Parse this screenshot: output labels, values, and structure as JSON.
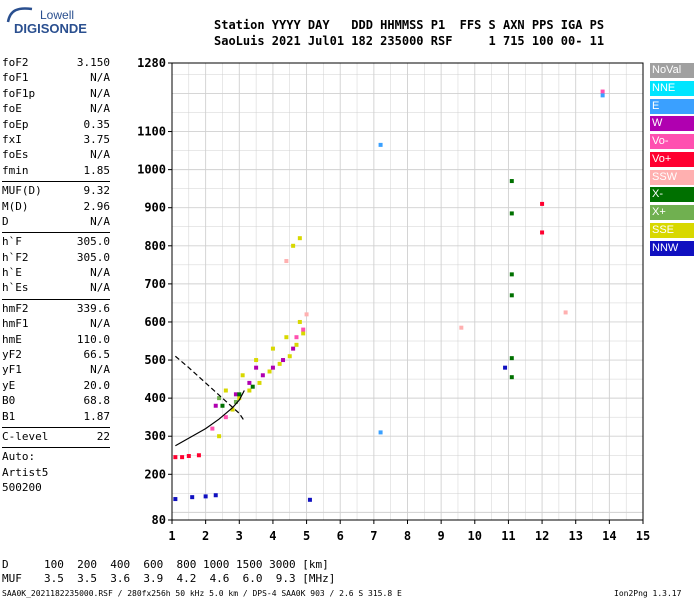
{
  "logo": {
    "line1": "Lowell",
    "line2": "DIGISONDE"
  },
  "header": {
    "line1": "Station YYYY DAY   DDD HHMMSS P1  FFS S AXN PPS IGA PS",
    "line2": "SaoLuis 2021 Jul01 182 235000 RSF     1 715 100 00- 11"
  },
  "params": {
    "group1": [
      {
        "name": "foF2",
        "value": "3.150"
      },
      {
        "name": "foF1",
        "value": "N/A"
      },
      {
        "name": "foF1p",
        "value": "N/A"
      },
      {
        "name": "foE",
        "value": "N/A"
      },
      {
        "name": "foEp",
        "value": "0.35"
      },
      {
        "name": "fxI",
        "value": "3.75"
      },
      {
        "name": "foEs",
        "value": "N/A"
      },
      {
        "name": "fmin",
        "value": "1.85"
      }
    ],
    "group2": [
      {
        "name": "MUF(D)",
        "value": "9.32"
      },
      {
        "name": "M(D)",
        "value": "2.96"
      },
      {
        "name": "D",
        "value": "N/A"
      }
    ],
    "group3": [
      {
        "name": "h`F",
        "value": "305.0"
      },
      {
        "name": "h`F2",
        "value": "305.0"
      },
      {
        "name": "h`E",
        "value": "N/A"
      },
      {
        "name": "h`Es",
        "value": "N/A"
      }
    ],
    "group4": [
      {
        "name": "hmF2",
        "value": "339.6"
      },
      {
        "name": "hmF1",
        "value": "N/A"
      },
      {
        "name": "hmE",
        "value": "110.0"
      },
      {
        "name": "yF2",
        "value": "66.5"
      },
      {
        "name": "yF1",
        "value": "N/A"
      },
      {
        "name": "yE",
        "value": "20.0"
      },
      {
        "name": "B0",
        "value": "68.8"
      },
      {
        "name": "B1",
        "value": "1.87"
      }
    ],
    "clevel": {
      "name": "C-level",
      "value": "22"
    }
  },
  "autoscale": {
    "line1": "Auto:",
    "line2": "Artist5",
    "line3": "500200"
  },
  "legend": [
    {
      "label": "NoVal",
      "color": "#a0a0a0"
    },
    {
      "label": "NNE",
      "color": "#00e5ff"
    },
    {
      "label": "E",
      "color": "#3aa0ff"
    },
    {
      "label": "W",
      "color": "#b000b0"
    },
    {
      "label": "Vo-",
      "color": "#ff50b0"
    },
    {
      "label": "Vo+",
      "color": "#ff0030"
    },
    {
      "label": "SSW",
      "color": "#ffb0b0"
    },
    {
      "label": "X-",
      "color": "#007000"
    },
    {
      "label": "X+",
      "color": "#70b050"
    },
    {
      "label": "SSE",
      "color": "#d8d800"
    },
    {
      "label": "NNW",
      "color": "#1010c0"
    }
  ],
  "footer": {
    "d_label": "D",
    "d_values": "100  200  400  600  800 1000 1500 3000 [km]",
    "muf_label": "MUF",
    "muf_values": "3.5  3.5  3.6  3.9  4.2  4.6  6.0  9.3 [MHz]",
    "file_info": "SAA0K_2021182235000.RSF / 280fx256h 50 kHz 5.0 km / DPS-4 SAA0K 903 / 2.6 S 315.8 E",
    "version": "Ion2Png 1.3.17"
  },
  "chart_data": {
    "type": "scatter",
    "xlabel": "",
    "ylabel": "",
    "xlim": [
      1,
      15
    ],
    "ylim": [
      80,
      1280
    ],
    "x_ticks": [
      1,
      2,
      3,
      4,
      5,
      6,
      7,
      8,
      9,
      10,
      11,
      12,
      13,
      14,
      15
    ],
    "y_ticks": [
      80,
      200,
      300,
      400,
      500,
      600,
      700,
      800,
      900,
      1000,
      1100,
      1280
    ],
    "grid": true,
    "series": [
      {
        "name": "SSE",
        "color": "#d8d800",
        "points": [
          [
            2.4,
            300
          ],
          [
            2.8,
            370
          ],
          [
            3.0,
            400
          ],
          [
            3.3,
            420
          ],
          [
            3.6,
            440
          ],
          [
            3.9,
            470
          ],
          [
            4.2,
            490
          ],
          [
            4.5,
            510
          ],
          [
            4.7,
            540
          ],
          [
            4.9,
            570
          ],
          [
            2.6,
            420
          ],
          [
            3.1,
            460
          ],
          [
            3.5,
            500
          ],
          [
            4.0,
            530
          ],
          [
            4.4,
            560
          ],
          [
            4.8,
            600
          ],
          [
            4.6,
            800
          ],
          [
            4.8,
            820
          ]
        ]
      },
      {
        "name": "W",
        "color": "#b000b0",
        "points": [
          [
            2.9,
            410
          ],
          [
            3.3,
            440
          ],
          [
            3.7,
            460
          ],
          [
            4.0,
            480
          ],
          [
            4.3,
            500
          ],
          [
            4.6,
            530
          ],
          [
            3.5,
            480
          ],
          [
            2.3,
            380
          ]
        ]
      },
      {
        "name": "Vo-",
        "color": "#ff50b0",
        "points": [
          [
            2.2,
            320
          ],
          [
            2.6,
            350
          ],
          [
            4.7,
            560
          ],
          [
            4.9,
            580
          ],
          [
            13.8,
            1205
          ]
        ]
      },
      {
        "name": "Vo+",
        "color": "#ff0030",
        "points": [
          [
            1.1,
            245
          ],
          [
            1.3,
            245
          ],
          [
            1.5,
            248
          ],
          [
            1.8,
            250
          ],
          [
            12.0,
            910
          ],
          [
            12.0,
            835
          ]
        ]
      },
      {
        "name": "X-",
        "color": "#007000",
        "points": [
          [
            2.5,
            380
          ],
          [
            3.0,
            410
          ],
          [
            3.4,
            430
          ],
          [
            11.1,
            970
          ],
          [
            11.1,
            885
          ],
          [
            11.1,
            725
          ],
          [
            11.1,
            670
          ],
          [
            11.1,
            505
          ],
          [
            11.1,
            455
          ]
        ]
      },
      {
        "name": "X+",
        "color": "#70b050",
        "points": [
          [
            2.4,
            400
          ],
          [
            2.9,
            390
          ]
        ]
      },
      {
        "name": "SSW",
        "color": "#ffb0b0",
        "points": [
          [
            5.0,
            620
          ],
          [
            4.4,
            760
          ],
          [
            9.6,
            585
          ],
          [
            12.7,
            625
          ]
        ]
      },
      {
        "name": "E",
        "color": "#3aa0ff",
        "points": [
          [
            7.2,
            1065
          ],
          [
            7.2,
            310
          ],
          [
            13.8,
            1195
          ]
        ]
      },
      {
        "name": "NNW",
        "color": "#1010c0",
        "points": [
          [
            1.1,
            135
          ],
          [
            1.6,
            140
          ],
          [
            2.0,
            142
          ],
          [
            2.3,
            145
          ],
          [
            5.1,
            133
          ],
          [
            10.9,
            480
          ]
        ]
      }
    ],
    "traces": [
      {
        "style": "solid",
        "points": [
          [
            1.1,
            275
          ],
          [
            1.6,
            300
          ],
          [
            2.0,
            320
          ],
          [
            2.4,
            345
          ],
          [
            2.8,
            375
          ],
          [
            3.0,
            395
          ],
          [
            3.15,
            420
          ]
        ]
      },
      {
        "style": "dashed",
        "points": [
          [
            1.1,
            510
          ],
          [
            1.5,
            480
          ],
          [
            2.0,
            440
          ],
          [
            2.5,
            400
          ],
          [
            3.0,
            360
          ],
          [
            3.15,
            340
          ]
        ]
      }
    ]
  }
}
